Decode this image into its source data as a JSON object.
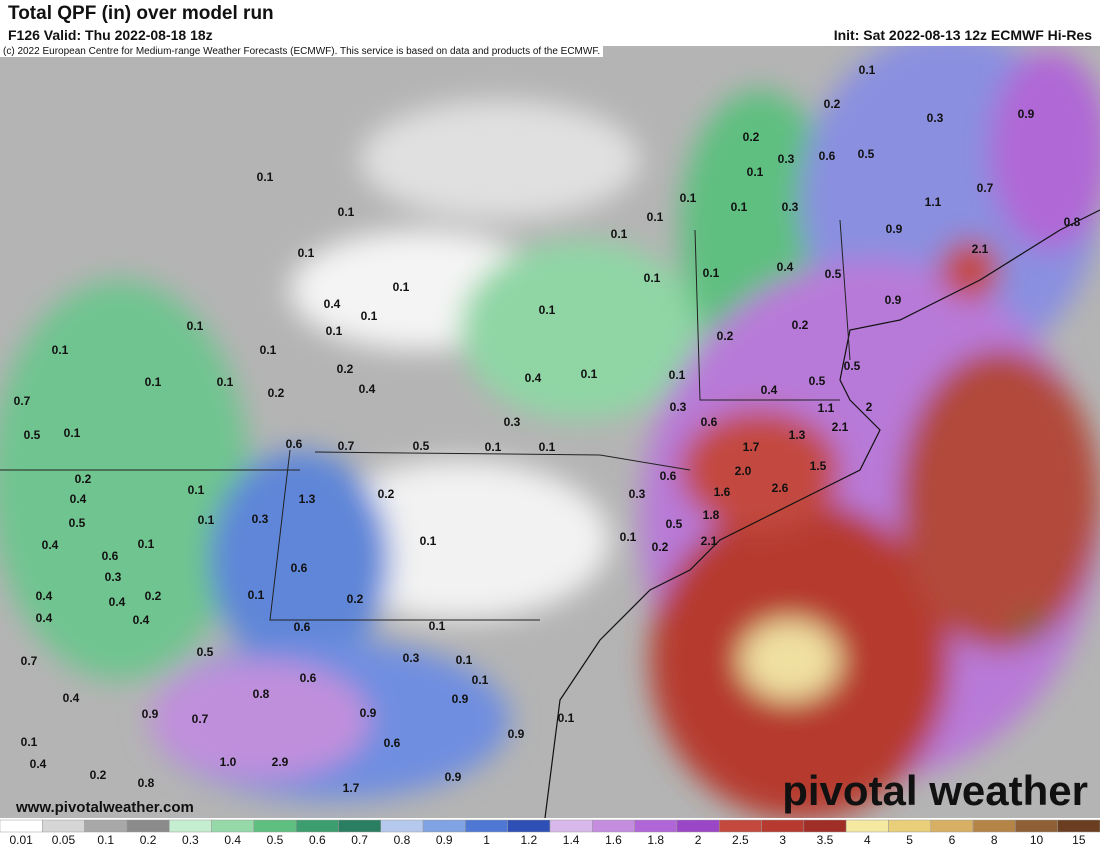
{
  "header": {
    "title": "Total QPF (in) over model run",
    "valid": "F126 Valid: Thu 2022-08-18 18z",
    "init": "Init: Sat 2022-08-13 12z ECMWF Hi-Res",
    "copyright": "(c) 2022 European Centre for Medium-range Weather Forecasts (ECMWF). This service is based on data and products of the ECMWF."
  },
  "footer": {
    "website": "www.pivotalweather.com",
    "logo": "pivotal weather"
  },
  "legend": {
    "ticks": [
      0.01,
      0.05,
      0.1,
      0.2,
      0.3,
      0.4,
      0.5,
      0.6,
      0.7,
      0.8,
      0.9,
      1,
      1.2,
      1.4,
      1.6,
      1.8,
      2,
      2.5,
      3,
      3.5,
      4,
      5,
      6,
      8,
      10,
      15
    ],
    "colors": [
      "#ffffff",
      "#d6d6d6",
      "#a8a8a8",
      "#8b8b8b",
      "#c5edcf",
      "#95d9a9",
      "#5fbf80",
      "#3c9e6f",
      "#2a7e62",
      "#b5c9ee",
      "#7fa3e3",
      "#4f78d4",
      "#2e4fb5",
      "#d8b7ea",
      "#c58de0",
      "#b066d6",
      "#9a46c6",
      "#c3493f",
      "#b63a2f",
      "#a12d27",
      "#f5e8a0",
      "#e9cf7a",
      "#d7b065",
      "#b58548",
      "#8f5f36",
      "#6b3e21"
    ]
  },
  "map": {
    "labels": [
      "0.1",
      "0.2",
      "0.3",
      "0.9",
      "0.2",
      "0.3",
      "0.6",
      "0.5",
      "0.1",
      "0.7",
      "0.1",
      "0.1",
      "0.3",
      "1.1",
      "0.1",
      "0.8",
      "0.9",
      "0.1",
      "2.1",
      "0.1",
      "0.1",
      "0.1",
      "0.1",
      "0.1",
      "0.4",
      "0.5",
      "0.1",
      "0.9",
      "0.4",
      "0.1",
      "0.1",
      "0.1",
      "0.1",
      "0.2",
      "0.2",
      "0.1",
      "0.1",
      "0.2",
      "0.4",
      "0.1",
      "0.1",
      "0.5",
      "0.1",
      "0.1",
      "0.2",
      "0.4",
      "0.4",
      "0.5",
      "0.7",
      "0.3",
      "1.1",
      "2",
      "0.5",
      "0.1",
      "0.3",
      "0.6",
      "1.3",
      "2.1",
      "0.6",
      "0.7",
      "0.5",
      "0.1",
      "0.1",
      "1.7",
      "0.2",
      "2.0",
      "1.5",
      "0.6",
      "0.4",
      "0.1",
      "1.3",
      "0.2",
      "0.3",
      "1.6",
      "2.6",
      "0.5",
      "0.1",
      "0.3",
      "1.8",
      "0.5",
      "0.4",
      "0.1",
      "0.1",
      "0.1",
      "0.2",
      "2.1",
      "0.6",
      "0.3",
      "0.6",
      "0.4",
      "0.2",
      "0.4",
      "0.1",
      "0.2",
      "0.4",
      "0.4",
      "0.6",
      "0.1",
      "0.5",
      "0.3",
      "0.1",
      "0.7",
      "0.6",
      "0.1",
      "0.8",
      "0.4",
      "0.9",
      "0.9",
      "0.7",
      "0.9",
      "0.1",
      "0.1",
      "0.6",
      "0.9",
      "0.4",
      "1.0",
      "2.9",
      "0.2",
      "0.8",
      "0.9",
      "1.7"
    ]
  }
}
